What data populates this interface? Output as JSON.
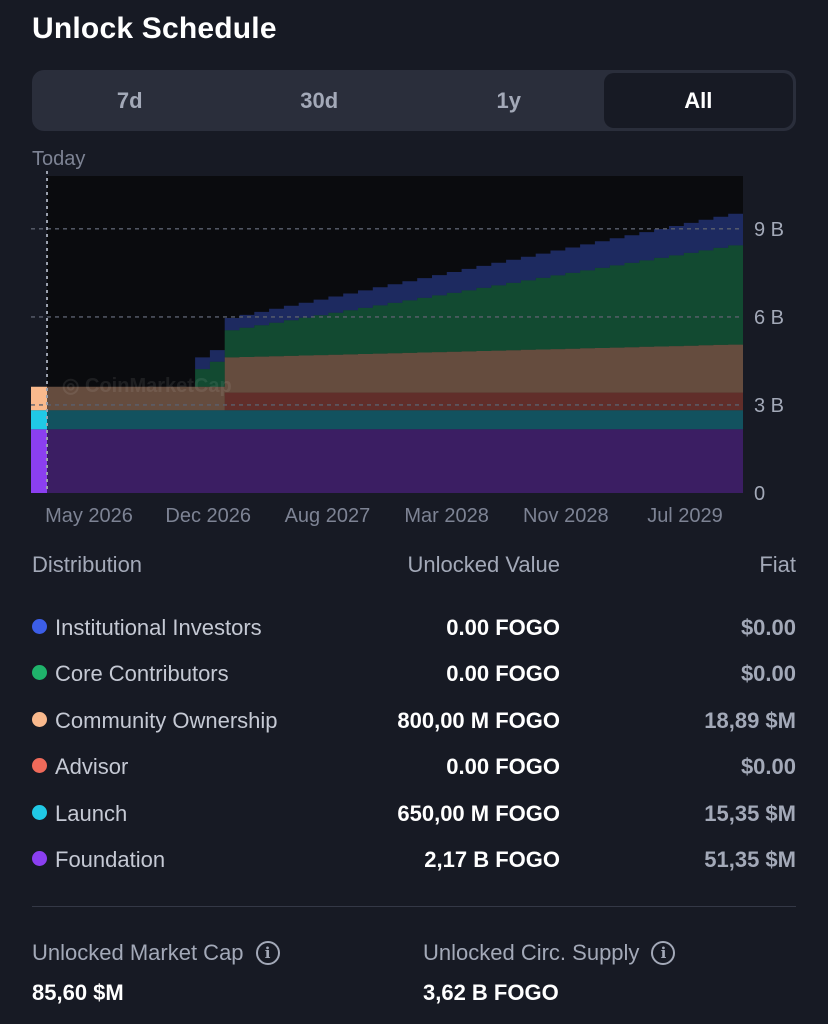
{
  "title": "Unlock Schedule",
  "tabs": [
    {
      "label": "7d",
      "active": false
    },
    {
      "label": "30d",
      "active": false
    },
    {
      "label": "1y",
      "active": false
    },
    {
      "label": "All",
      "active": true
    }
  ],
  "today_label": "Today",
  "watermark": "CoinMarketCap",
  "chart_data": {
    "type": "area",
    "stacked": true,
    "y_ticks": [
      "9 B",
      "6 B",
      "3 B",
      "0"
    ],
    "y_tick_values": [
      9,
      6,
      3,
      0
    ],
    "ylim": [
      0,
      10.8
    ],
    "y_unit": "B FOGO",
    "x_tick_labels": [
      "May 2026",
      "Dec 2026",
      "Aug 2027",
      "Mar 2028",
      "Nov 2028",
      "Jul 2029"
    ],
    "x_range": [
      "2026-01",
      "2029-12"
    ],
    "today": "2026-01",
    "grid": "dashed horizontal at 3 B, 6 B, 9 B",
    "series": [
      {
        "name": "Foundation",
        "color": "#8b3ff0",
        "points": [
          [
            "2026-01",
            2.17
          ],
          [
            "2029-12",
            2.17
          ]
        ]
      },
      {
        "name": "Launch",
        "color": "#20c9e6",
        "points": [
          [
            "2026-01",
            0.65
          ],
          [
            "2029-12",
            0.65
          ]
        ]
      },
      {
        "name": "Advisor",
        "color": "#ef6a5a",
        "points": [
          [
            "2026-01",
            0
          ],
          [
            "2026-12",
            0
          ],
          [
            "2027-01",
            0.6
          ],
          [
            "2029-12",
            0.6
          ]
        ]
      },
      {
        "name": "Community Ownership",
        "color": "#f9b98d",
        "points": [
          [
            "2026-01",
            0.8
          ],
          [
            "2026-12",
            0.8
          ],
          [
            "2027-01",
            1.2
          ],
          [
            "2029-12",
            1.65
          ]
        ]
      },
      {
        "name": "Core Contributors",
        "color": "#1fb36b",
        "points": [
          [
            "2026-01",
            0
          ],
          [
            "2026-10",
            0
          ],
          [
            "2026-11",
            0.6
          ],
          [
            "2026-12",
            0.85
          ],
          [
            "2029-12",
            3.45
          ]
        ]
      },
      {
        "name": "Institutional Investors",
        "color": "#3c5ee8",
        "points": [
          [
            "2026-01",
            0
          ],
          [
            "2026-10",
            0
          ],
          [
            "2026-11",
            0.4
          ],
          [
            "2026-12",
            0.4
          ],
          [
            "2029-12",
            1.1
          ]
        ]
      }
    ]
  },
  "table": {
    "headers": {
      "distribution": "Distribution",
      "value": "Unlocked Value",
      "fiat": "Fiat"
    },
    "rows": [
      {
        "name": "Institutional Investors",
        "value": "0.00 FOGO",
        "fiat": "$0.00",
        "color": "#3c5ee8"
      },
      {
        "name": "Core Contributors",
        "value": "0.00 FOGO",
        "fiat": "$0.00",
        "color": "#1fb36b"
      },
      {
        "name": "Community Ownership",
        "value": "800,00 M FOGO",
        "fiat": "18,89 $M",
        "color": "#f9b98d"
      },
      {
        "name": "Advisor",
        "value": "0.00 FOGO",
        "fiat": "$0.00",
        "color": "#ef6a5a"
      },
      {
        "name": "Launch",
        "value": "650,00 M FOGO",
        "fiat": "15,35 $M",
        "color": "#20c9e6"
      },
      {
        "name": "Foundation",
        "value": "2,17 B FOGO",
        "fiat": "51,35 $M",
        "color": "#8b3ff0"
      }
    ]
  },
  "stats": {
    "market_cap_label": "Unlocked Market Cap",
    "market_cap_value": "85,60 $M",
    "circ_supply_label": "Unlocked Circ. Supply",
    "circ_supply_value": "3,62 B FOGO",
    "info_glyph": "i"
  }
}
